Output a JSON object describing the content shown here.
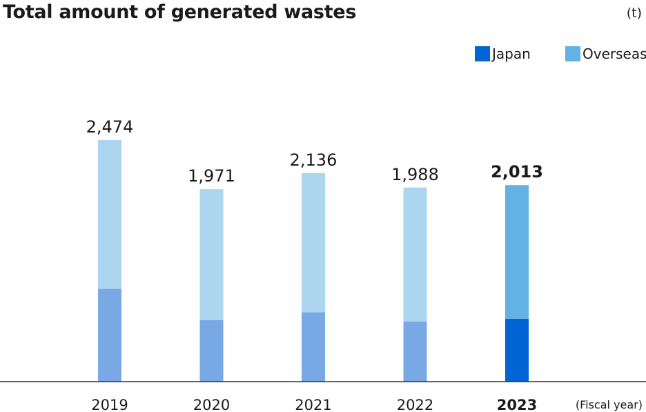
{
  "title": "Total amount of generated wastes",
  "unit": "(t)",
  "legend": [
    {
      "name": "Japan",
      "color": "#0064d2"
    },
    {
      "name": "Overseas",
      "color": "#64b1e4"
    }
  ],
  "chart_data": {
    "type": "bar",
    "stacked": true,
    "categories": [
      "2019",
      "2020",
      "2021",
      "2022",
      "2023"
    ],
    "highlight_category": "2023",
    "totals_labels": [
      "2,474",
      "1,971",
      "2,136",
      "1,988",
      "2,013"
    ],
    "series": [
      {
        "name": "Japan",
        "values": [
          950,
          630,
          710,
          615,
          645
        ]
      },
      {
        "name": "Overseas",
        "values": [
          1524,
          1341,
          1426,
          1373,
          1368
        ]
      }
    ],
    "colors": {
      "japan_past": "#78a9e4",
      "overseas_past": "#acd5ef",
      "japan_highlight": "#0064d2",
      "overseas_highlight": "#64b1e4"
    },
    "xlabel": "(Fiscal year)",
    "ylim": [
      0,
      2474
    ],
    "grid": false,
    "legend_position": "top-right"
  }
}
